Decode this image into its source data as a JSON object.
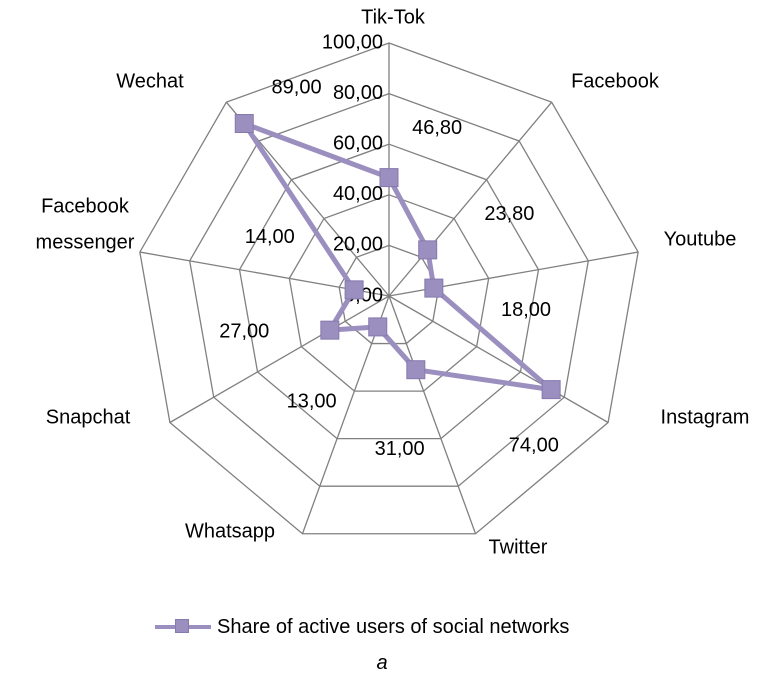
{
  "chart_data": {
    "type": "radar",
    "categories": [
      "Tik-Tok",
      "Facebook",
      "Youtube",
      "Instagram",
      "Twitter",
      "Whatsapp",
      "Snapchat",
      "Facebook messenger",
      "Wechat"
    ],
    "series": [
      {
        "name": "Share of active users of social networks",
        "values": [
          46.8,
          23.8,
          18.0,
          74.0,
          31.0,
          13.0,
          27.0,
          14.0,
          89.0
        ],
        "value_labels": [
          "46,80",
          "23,80",
          "18,00",
          "74,00",
          "31,00",
          "13,00",
          "27,00",
          "14,00",
          "89,00"
        ]
      }
    ],
    "rlim": [
      0,
      100
    ],
    "rticks": [
      0,
      20,
      40,
      60,
      80,
      100
    ],
    "rtick_labels": [
      "0,00",
      "20,00",
      "40,00",
      "60,00",
      "80,00",
      "100,00"
    ],
    "grid": true,
    "legend": "bottom",
    "colors": {
      "series": "#9b8fbf",
      "grid": "#808080"
    }
  },
  "caption": "a"
}
